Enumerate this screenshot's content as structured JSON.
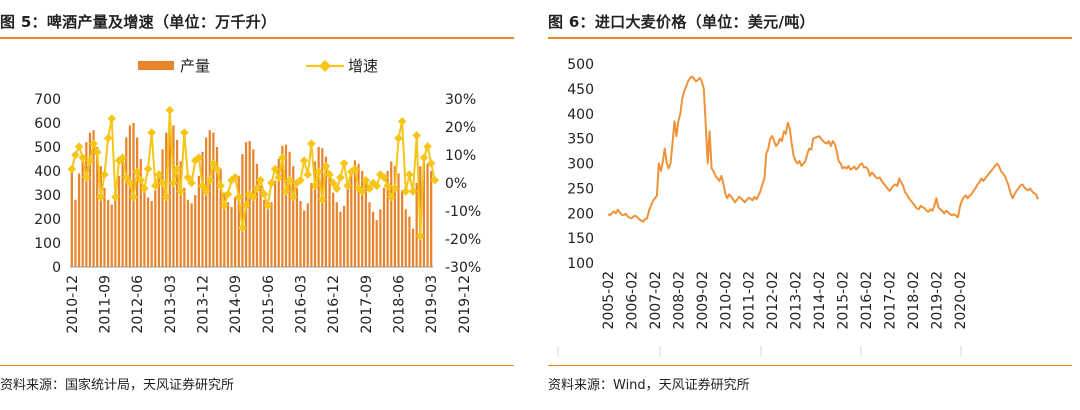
{
  "left": {
    "title": "图 5：啤酒产量及增速（单位：万千升）",
    "source": "资料来源：国家统计局，天风证券研究所"
  },
  "right": {
    "title": "图 6：进口大麦价格（单位：美元/吨）",
    "source": "资料来源：Wind，天风证券研究所"
  },
  "colors": {
    "bar": "#E8842B",
    "line": "#F5C518",
    "price": "#F0923A",
    "rule": "#E8882C"
  },
  "chart_data": [
    {
      "type": "bar",
      "title": "",
      "ylabel": "",
      "ylim": [
        0,
        700
      ],
      "y2lim": [
        -30,
        30
      ],
      "yticks": [
        "0",
        "100",
        "200",
        "300",
        "400",
        "500",
        "600",
        "700"
      ],
      "y2ticks": [
        "-30%",
        "-20%",
        "-10%",
        "0%",
        "10%",
        "20%",
        "30%"
      ],
      "x_tick_labels": [
        "2010-12",
        "2011-09",
        "2012-06",
        "2013-03",
        "2013-12",
        "2014-09",
        "2015-06",
        "2016-03",
        "2016-12",
        "2017-09",
        "2018-06",
        "2019-03",
        "2019-12"
      ],
      "legend": {
        "position": "top",
        "entries": [
          "产量",
          "增速"
        ]
      },
      "series": [
        {
          "name": "产量",
          "type": "bar",
          "axis": "left",
          "start": "2010-12",
          "values": [
            420,
            280,
            390,
            450,
            520,
            560,
            570,
            500,
            420,
            330,
            280,
            260,
            310,
            380,
            470,
            540,
            590,
            600,
            540,
            450,
            340,
            290,
            275,
            320,
            400,
            490,
            560,
            610,
            590,
            530,
            440,
            330,
            280,
            265,
            300,
            380,
            480,
            540,
            570,
            560,
            500,
            410,
            310,
            270,
            250,
            290,
            380,
            470,
            520,
            525,
            490,
            430,
            340,
            280,
            240,
            270,
            360,
            450,
            505,
            510,
            480,
            420,
            330,
            275,
            235,
            265,
            350,
            440,
            500,
            495,
            460,
            400,
            310,
            270,
            230,
            255,
            340,
            410,
            445,
            430,
            400,
            360,
            270,
            230,
            195,
            240,
            330,
            400,
            440,
            420,
            390,
            320,
            240,
            210,
            160,
            350,
            420,
            460,
            430,
            400
          ]
        },
        {
          "name": "增速",
          "type": "line",
          "axis": "right",
          "start": "2010-12",
          "values": [
            5,
            10,
            13,
            9,
            2,
            8,
            14,
            11,
            -5,
            3,
            16,
            23,
            -5,
            8,
            9,
            2,
            0,
            -5,
            4,
            1,
            -2,
            5,
            18,
            -1,
            3,
            0,
            -5,
            26,
            0,
            5,
            -3,
            18,
            2,
            0,
            8,
            9,
            -1,
            -3,
            1,
            7,
            5,
            -1,
            -8,
            -4,
            1,
            2,
            -5,
            -16,
            -8,
            -4,
            -5,
            -2,
            1,
            -4,
            -8,
            0,
            5,
            2,
            9,
            -3,
            1,
            -5,
            0,
            1,
            8,
            3,
            14,
            -1,
            4,
            -6,
            6,
            3,
            0,
            -2,
            2,
            7,
            -1,
            4,
            5,
            -2,
            -3,
            1,
            -2,
            0,
            -1,
            3,
            2,
            -1,
            -5,
            -2,
            16,
            22,
            -3,
            3,
            -3,
            17,
            -19,
            9,
            13,
            7,
            1
          ]
        }
      ]
    },
    {
      "type": "line",
      "title": "",
      "ylabel": "",
      "ylim": [
        100,
        500
      ],
      "yticks": [
        "100",
        "150",
        "200",
        "250",
        "300",
        "350",
        "400",
        "450",
        "500"
      ],
      "x_tick_labels": [
        "2005-02",
        "2006-02",
        "2007-02",
        "2008-02",
        "2009-02",
        "2010-02",
        "2011-02",
        "2012-02",
        "2013-02",
        "2014-02",
        "2015-02",
        "2016-02",
        "2017-02",
        "2018-02",
        "2019-02",
        "2020-02"
      ],
      "grid": false,
      "series": [
        {
          "name": "",
          "start": "2005-02",
          "values": [
            198,
            196,
            200,
            204,
            200,
            207,
            202,
            197,
            196,
            199,
            194,
            191,
            190,
            193,
            195,
            192,
            188,
            185,
            183,
            188,
            190,
            205,
            215,
            225,
            230,
            235,
            300,
            285,
            302,
            330,
            302,
            290,
            300,
            340,
            385,
            355,
            385,
            400,
            430,
            445,
            455,
            465,
            472,
            475,
            470,
            465,
            468,
            472,
            465,
            450,
            380,
            300,
            365,
            290,
            285,
            275,
            270,
            265,
            275,
            260,
            240,
            230,
            238,
            233,
            228,
            222,
            227,
            233,
            230,
            226,
            222,
            227,
            231,
            229,
            226,
            233,
            228,
            236,
            245,
            258,
            270,
            320,
            330,
            350,
            355,
            345,
            335,
            340,
            350,
            345,
            365,
            360,
            382,
            370,
            340,
            315,
            305,
            300,
            305,
            295,
            300,
            305,
            320,
            330,
            328,
            350,
            352,
            353,
            355,
            350,
            345,
            342,
            340,
            345,
            335,
            345,
            340,
            325,
            305,
            300,
            290,
            293,
            290,
            295,
            288,
            290,
            294,
            288,
            292,
            298,
            300,
            292,
            293,
            288,
            275,
            282,
            278,
            272,
            270,
            272,
            265,
            260,
            255,
            250,
            245,
            250,
            255,
            258,
            255,
            270,
            262,
            255,
            242,
            237,
            230,
            225,
            220,
            215,
            210,
            208,
            215,
            212,
            210,
            205,
            203,
            208,
            205,
            215,
            230,
            212,
            208,
            205,
            200,
            205,
            202,
            198,
            196,
            198,
            195,
            192,
            212,
            225,
            232,
            236,
            230,
            235,
            238,
            245,
            250,
            258,
            262,
            270,
            265,
            270,
            275,
            280,
            285,
            290,
            295,
            300,
            295,
            285,
            280,
            275,
            265,
            255,
            240,
            230,
            238,
            245,
            250,
            256,
            258,
            252,
            248,
            246,
            250,
            244,
            240,
            238,
            228
          ]
        }
      ]
    }
  ]
}
